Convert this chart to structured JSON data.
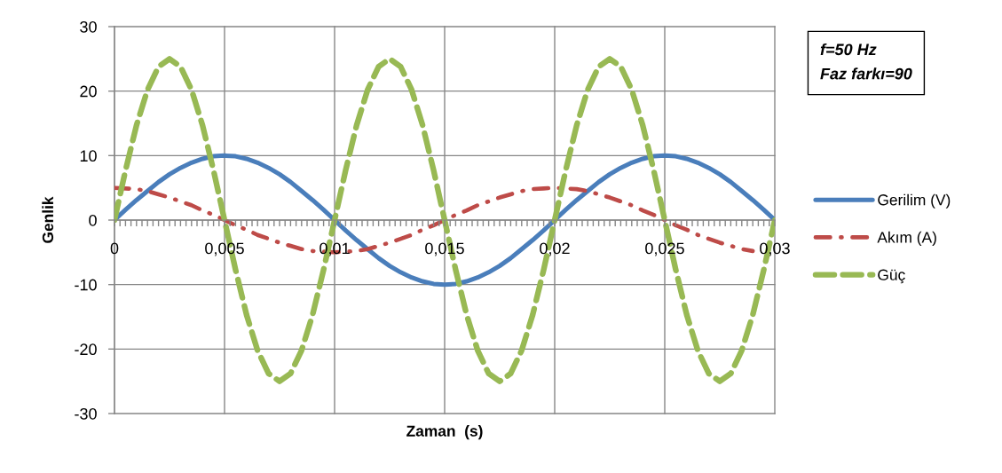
{
  "chart_data": {
    "type": "line",
    "xlabel": "Zaman  (s)",
    "ylabel": "Genlik",
    "annotations": [
      "f=50 Hz",
      "Faz farkı=90"
    ],
    "x": [
      0,
      0.0005,
      0.001,
      0.0015,
      0.002,
      0.0025,
      0.003,
      0.0035,
      0.004,
      0.0045,
      0.005,
      0.0055,
      0.006,
      0.0065,
      0.007,
      0.0075,
      0.008,
      0.0085,
      0.009,
      0.0095,
      0.01,
      0.0105,
      0.011,
      0.0115,
      0.012,
      0.0125,
      0.013,
      0.0135,
      0.014,
      0.0145,
      0.015,
      0.0155,
      0.016,
      0.0165,
      0.017,
      0.0175,
      0.018,
      0.0185,
      0.019,
      0.0195,
      0.02,
      0.0205,
      0.021,
      0.0215,
      0.022,
      0.0225,
      0.023,
      0.0235,
      0.024,
      0.0245,
      0.025,
      0.0255,
      0.026,
      0.0265,
      0.027,
      0.0275,
      0.028,
      0.0285,
      0.029,
      0.0295,
      0.03
    ],
    "series": [
      {
        "name": "Gerilim (V)",
        "color": "#4a7ebb",
        "line_style": "solid",
        "values": [
          0,
          1.6,
          3.1,
          4.5,
          5.9,
          7.1,
          8.1,
          8.9,
          9.5,
          9.9,
          10,
          9.9,
          9.5,
          8.9,
          8.1,
          7.1,
          5.9,
          4.5,
          3.1,
          1.6,
          0,
          -1.6,
          -3.1,
          -4.5,
          -5.9,
          -7.1,
          -8.1,
          -8.9,
          -9.5,
          -9.9,
          -10,
          -9.9,
          -9.5,
          -8.9,
          -8.1,
          -7.1,
          -5.9,
          -4.5,
          -3.1,
          -1.6,
          0,
          1.6,
          3.1,
          4.5,
          5.9,
          7.1,
          8.1,
          8.9,
          9.5,
          9.9,
          10,
          9.9,
          9.5,
          8.9,
          8.1,
          7.1,
          5.9,
          4.5,
          3.1,
          1.6,
          0
        ]
      },
      {
        "name": "Akım (A)",
        "color": "#be4b48",
        "line_style": "dashdot",
        "values": [
          5,
          4.9,
          4.8,
          4.5,
          4,
          3.5,
          2.9,
          2.3,
          1.5,
          0.8,
          0,
          -0.8,
          -1.5,
          -2.3,
          -2.9,
          -3.5,
          -4,
          -4.5,
          -4.8,
          -4.9,
          -5,
          -4.9,
          -4.8,
          -4.5,
          -4,
          -3.5,
          -2.9,
          -2.3,
          -1.5,
          -0.8,
          0,
          0.8,
          1.5,
          2.3,
          2.9,
          3.5,
          4,
          4.5,
          4.8,
          4.9,
          5,
          4.9,
          4.8,
          4.5,
          4,
          3.5,
          2.9,
          2.3,
          1.5,
          0.8,
          0,
          -0.8,
          -1.5,
          -2.3,
          -2.9,
          -3.5,
          -4,
          -4.5,
          -4.8,
          null,
          null
        ]
      },
      {
        "name": "Güç",
        "color": "#98b954",
        "line_style": "dashed",
        "values": [
          0,
          7.7,
          14.7,
          20.2,
          23.8,
          25,
          23.8,
          20.2,
          14.7,
          7.7,
          0,
          -7.7,
          -14.7,
          -20.2,
          -23.8,
          -25,
          -23.8,
          -20.2,
          -14.7,
          -7.7,
          0,
          7.7,
          14.7,
          20.2,
          23.8,
          25,
          23.8,
          20.2,
          14.7,
          7.7,
          0,
          -7.7,
          -14.7,
          -20.2,
          -23.8,
          -25,
          -23.8,
          -20.2,
          -14.7,
          -7.7,
          0,
          7.7,
          14.7,
          20.2,
          23.8,
          25,
          23.8,
          20.2,
          14.7,
          7.7,
          0,
          -7.7,
          -14.7,
          -20.2,
          -23.8,
          -25,
          -23.8,
          -20.2,
          -14.7,
          -7.7,
          0
        ]
      }
    ],
    "xlim": [
      0,
      0.03
    ],
    "ylim": [
      -30,
      30
    ],
    "yticks": [
      -30,
      -20,
      -10,
      0,
      10,
      20,
      30
    ],
    "xticks": [
      {
        "value": 0,
        "label": "0"
      },
      {
        "value": 0.00025,
        "label": null
      },
      {
        "value": 0.0005,
        "label": null
      },
      {
        "value": 0.00075,
        "label": null
      },
      {
        "value": 0.001,
        "label": null
      },
      {
        "value": 0.00125,
        "label": null
      },
      {
        "value": 0.0015,
        "label": null
      },
      {
        "value": 0.00175,
        "label": null
      },
      {
        "value": 0.002,
        "label": null
      },
      {
        "value": 0.00225,
        "label": null
      },
      {
        "value": 0.0025,
        "label": null
      },
      {
        "value": 0.00275,
        "label": null
      },
      {
        "value": 0.003,
        "label": null
      },
      {
        "value": 0.00325,
        "label": null
      },
      {
        "value": 0.0035,
        "label": null
      },
      {
        "value": 0.00375,
        "label": null
      },
      {
        "value": 0.004,
        "label": null
      },
      {
        "value": 0.00425,
        "label": null
      },
      {
        "value": 0.0045,
        "label": null
      },
      {
        "value": 0.00475,
        "label": null
      },
      {
        "value": 0.005,
        "label": "0,005"
      },
      {
        "value": 0.00525,
        "label": null
      },
      {
        "value": 0.0055,
        "label": null
      },
      {
        "value": 0.00575,
        "label": null
      },
      {
        "value": 0.006,
        "label": null
      },
      {
        "value": 0.00625,
        "label": null
      },
      {
        "value": 0.0065,
        "label": null
      },
      {
        "value": 0.00675,
        "label": null
      },
      {
        "value": 0.007,
        "label": null
      },
      {
        "value": 0.00725,
        "label": null
      },
      {
        "value": 0.0075,
        "label": null
      },
      {
        "value": 0.00775,
        "label": null
      },
      {
        "value": 0.008,
        "label": null
      },
      {
        "value": 0.00825,
        "label": null
      },
      {
        "value": 0.0085,
        "label": null
      },
      {
        "value": 0.00875,
        "label": null
      },
      {
        "value": 0.009,
        "label": null
      },
      {
        "value": 0.00925,
        "label": null
      },
      {
        "value": 0.0095,
        "label": null
      },
      {
        "value": 0.00975,
        "label": null
      },
      {
        "value": 0.01,
        "label": "0,01"
      },
      {
        "value": 0.01025,
        "label": null
      },
      {
        "value": 0.0105,
        "label": null
      },
      {
        "value": 0.01075,
        "label": null
      },
      {
        "value": 0.011,
        "label": null
      },
      {
        "value": 0.01125,
        "label": null
      },
      {
        "value": 0.0115,
        "label": null
      },
      {
        "value": 0.01175,
        "label": null
      },
      {
        "value": 0.012,
        "label": null
      },
      {
        "value": 0.01225,
        "label": null
      },
      {
        "value": 0.0125,
        "label": null
      },
      {
        "value": 0.01275,
        "label": null
      },
      {
        "value": 0.013,
        "label": null
      },
      {
        "value": 0.01325,
        "label": null
      },
      {
        "value": 0.0135,
        "label": null
      },
      {
        "value": 0.01375,
        "label": null
      },
      {
        "value": 0.014,
        "label": null
      },
      {
        "value": 0.01425,
        "label": null
      },
      {
        "value": 0.0145,
        "label": null
      },
      {
        "value": 0.01475,
        "label": null
      },
      {
        "value": 0.015,
        "label": "0,015"
      },
      {
        "value": 0.01525,
        "label": null
      },
      {
        "value": 0.0155,
        "label": null
      },
      {
        "value": 0.01575,
        "label": null
      },
      {
        "value": 0.016,
        "label": null
      },
      {
        "value": 0.01625,
        "label": null
      },
      {
        "value": 0.0165,
        "label": null
      },
      {
        "value": 0.01675,
        "label": null
      },
      {
        "value": 0.017,
        "label": null
      },
      {
        "value": 0.01725,
        "label": null
      },
      {
        "value": 0.0175,
        "label": null
      },
      {
        "value": 0.01775,
        "label": null
      },
      {
        "value": 0.018,
        "label": null
      },
      {
        "value": 0.01825,
        "label": null
      },
      {
        "value": 0.0185,
        "label": null
      },
      {
        "value": 0.01875,
        "label": null
      },
      {
        "value": 0.019,
        "label": null
      },
      {
        "value": 0.01925,
        "label": null
      },
      {
        "value": 0.0195,
        "label": null
      },
      {
        "value": 0.01975,
        "label": null
      },
      {
        "value": 0.02,
        "label": "0,02"
      },
      {
        "value": 0.02025,
        "label": null
      },
      {
        "value": 0.0205,
        "label": null
      },
      {
        "value": 0.02075,
        "label": null
      },
      {
        "value": 0.021,
        "label": null
      },
      {
        "value": 0.02125,
        "label": null
      },
      {
        "value": 0.0215,
        "label": null
      },
      {
        "value": 0.02175,
        "label": null
      },
      {
        "value": 0.022,
        "label": null
      },
      {
        "value": 0.02225,
        "label": null
      },
      {
        "value": 0.0225,
        "label": null
      },
      {
        "value": 0.02275,
        "label": null
      },
      {
        "value": 0.023,
        "label": null
      },
      {
        "value": 0.02325,
        "label": null
      },
      {
        "value": 0.0235,
        "label": null
      },
      {
        "value": 0.02375,
        "label": null
      },
      {
        "value": 0.024,
        "label": null
      },
      {
        "value": 0.02425,
        "label": null
      },
      {
        "value": 0.0245,
        "label": null
      },
      {
        "value": 0.02475,
        "label": null
      },
      {
        "value": 0.025,
        "label": "0,025"
      },
      {
        "value": 0.02525,
        "label": null
      },
      {
        "value": 0.0255,
        "label": null
      },
      {
        "value": 0.02575,
        "label": null
      },
      {
        "value": 0.026,
        "label": null
      },
      {
        "value": 0.02625,
        "label": null
      },
      {
        "value": 0.0265,
        "label": null
      },
      {
        "value": 0.02675,
        "label": null
      },
      {
        "value": 0.027,
        "label": null
      },
      {
        "value": 0.02725,
        "label": null
      },
      {
        "value": 0.0275,
        "label": null
      },
      {
        "value": 0.02775,
        "label": null
      },
      {
        "value": 0.028,
        "label": null
      },
      {
        "value": 0.02825,
        "label": null
      },
      {
        "value": 0.0285,
        "label": null
      },
      {
        "value": 0.02875,
        "label": null
      },
      {
        "value": 0.029,
        "label": null
      },
      {
        "value": 0.02925,
        "label": null
      },
      {
        "value": 0.0295,
        "label": null
      },
      {
        "value": 0.02975,
        "label": null
      },
      {
        "value": 0.03,
        "label": "0,03"
      }
    ],
    "grid": true,
    "legend": "right"
  }
}
